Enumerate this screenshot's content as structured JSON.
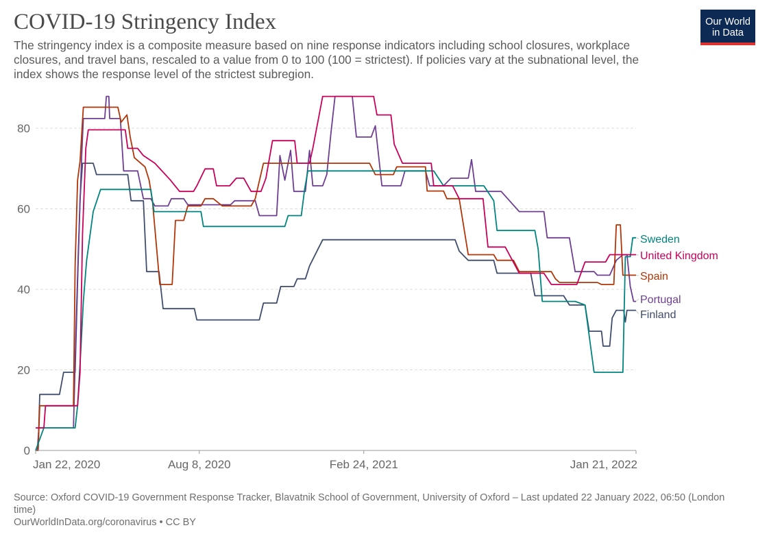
{
  "header": {
    "title": "COVID-19 Stringency Index",
    "subtitle": "The stringency index is a composite measure based on nine response indicators including school closures, workplace closures, and travel bans, rescaled to a value from 0 to 100 (100 = strictest). If policies vary at the subnational level, the index shows the response level of the strictest subregion."
  },
  "logo": {
    "line1": "Our World",
    "line2": "in Data",
    "bg_color": "#0d2a55",
    "accent_color": "#dc3232"
  },
  "footer": {
    "source": "Source: Oxford COVID-19 Government Response Tracker, Blavatnik School of Government, University of Oxford – Last updated 22 January 2022, 06:50 (London time)",
    "credit": "OurWorldInData.org/coronavirus • CC BY"
  },
  "chart_data": {
    "type": "line",
    "title": "COVID-19 Stringency Index",
    "xlabel": "",
    "ylabel": "",
    "x_range": [
      "2020-01-22",
      "2022-01-21"
    ],
    "ylim": [
      0,
      88
    ],
    "x_ticks": [
      {
        "date": "2020-01-22",
        "label": "Jan 22, 2020"
      },
      {
        "date": "2020-08-08",
        "label": "Aug 8, 2020"
      },
      {
        "date": "2021-02-24",
        "label": "Feb 24, 2021"
      },
      {
        "date": "2022-01-21",
        "label": "Jan 21, 2022"
      }
    ],
    "y_ticks": [
      0,
      20,
      40,
      60,
      80
    ],
    "grid": "horizontal dashed",
    "legend": "right, labels at line ends",
    "series": [
      {
        "name": "Sweden",
        "color": "#00847e",
        "last_value": 52.8,
        "points": [
          [
            "2020-01-22",
            0
          ],
          [
            "2020-02-01",
            5.6
          ],
          [
            "2020-03-10",
            5.6
          ],
          [
            "2020-03-13",
            11.1
          ],
          [
            "2020-03-17",
            25
          ],
          [
            "2020-03-20",
            37
          ],
          [
            "2020-03-24",
            47.2
          ],
          [
            "2020-04-01",
            59.3
          ],
          [
            "2020-04-10",
            64.8
          ],
          [
            "2020-06-10",
            64.8
          ],
          [
            "2020-06-14",
            59.3
          ],
          [
            "2020-08-10",
            59.3
          ],
          [
            "2020-08-13",
            55.6
          ],
          [
            "2020-11-20",
            55.6
          ],
          [
            "2020-11-24",
            58.3
          ],
          [
            "2020-12-10",
            58.3
          ],
          [
            "2020-12-14",
            64.8
          ],
          [
            "2020-12-18",
            69.4
          ],
          [
            "2021-04-20",
            69.4
          ],
          [
            "2021-05-20",
            69.4
          ],
          [
            "2021-06-01",
            65.7
          ],
          [
            "2021-07-20",
            65.7
          ],
          [
            "2021-08-01",
            62
          ],
          [
            "2021-08-05",
            54.6
          ],
          [
            "2021-09-20",
            54.6
          ],
          [
            "2021-09-24",
            50
          ],
          [
            "2021-09-29",
            37
          ],
          [
            "2021-11-08",
            37
          ],
          [
            "2021-11-20",
            36.1
          ],
          [
            "2021-12-01",
            19.4
          ],
          [
            "2022-01-05",
            19.4
          ],
          [
            "2022-01-08",
            48.1
          ],
          [
            "2022-01-14",
            48.1
          ],
          [
            "2022-01-17",
            52.8
          ],
          [
            "2022-01-21",
            52.8
          ]
        ]
      },
      {
        "name": "United Kingdom",
        "color": "#c8005a",
        "last_value": 48.6,
        "points": [
          [
            "2020-01-22",
            5.6
          ],
          [
            "2020-02-01",
            5.6
          ],
          [
            "2020-02-03",
            11.1
          ],
          [
            "2020-03-13",
            11.1
          ],
          [
            "2020-03-16",
            19.4
          ],
          [
            "2020-03-19",
            53.7
          ],
          [
            "2020-03-23",
            75
          ],
          [
            "2020-03-26",
            79.6
          ],
          [
            "2020-05-10",
            79.6
          ],
          [
            "2020-05-13",
            75
          ],
          [
            "2020-05-25",
            75
          ],
          [
            "2020-06-01",
            73.2
          ],
          [
            "2020-06-15",
            71.3
          ],
          [
            "2020-07-04",
            67.1
          ],
          [
            "2020-07-15",
            64.3
          ],
          [
            "2020-08-01",
            64.3
          ],
          [
            "2020-08-05",
            65.7
          ],
          [
            "2020-08-15",
            69.9
          ],
          [
            "2020-08-25",
            69.9
          ],
          [
            "2020-08-29",
            65.7
          ],
          [
            "2020-09-14",
            65.7
          ],
          [
            "2020-09-22",
            67.6
          ],
          [
            "2020-10-01",
            67.6
          ],
          [
            "2020-10-10",
            64.3
          ],
          [
            "2020-10-22",
            64.3
          ],
          [
            "2020-10-28",
            67.6
          ],
          [
            "2020-11-05",
            76.9
          ],
          [
            "2020-12-02",
            76.9
          ],
          [
            "2020-12-05",
            71.3
          ],
          [
            "2020-12-20",
            71.3
          ],
          [
            "2020-12-24",
            75
          ],
          [
            "2021-01-05",
            87.9
          ],
          [
            "2021-03-08",
            87.9
          ],
          [
            "2021-03-12",
            83.3
          ],
          [
            "2021-03-29",
            83.3
          ],
          [
            "2021-04-02",
            76
          ],
          [
            "2021-04-12",
            71.3
          ],
          [
            "2021-05-17",
            71.3
          ],
          [
            "2021-05-20",
            65.7
          ],
          [
            "2021-06-12",
            65.7
          ],
          [
            "2021-06-20",
            62.5
          ],
          [
            "2021-07-19",
            62.5
          ],
          [
            "2021-07-25",
            50.5
          ],
          [
            "2021-08-15",
            50.5
          ],
          [
            "2021-09-01",
            44
          ],
          [
            "2021-10-01",
            44
          ],
          [
            "2021-10-10",
            41.2
          ],
          [
            "2021-11-10",
            41.2
          ],
          [
            "2021-11-20",
            46.8
          ],
          [
            "2021-12-15",
            46.8
          ],
          [
            "2021-12-20",
            48.6
          ],
          [
            "2022-01-21",
            48.6
          ]
        ]
      },
      {
        "name": "Spain",
        "color": "#b13507",
        "last_value": 43.5,
        "points": [
          [
            "2020-01-22",
            0
          ],
          [
            "2020-01-25",
            0
          ],
          [
            "2020-01-27",
            11.1
          ],
          [
            "2020-03-08",
            11.1
          ],
          [
            "2020-03-10",
            45.8
          ],
          [
            "2020-03-13",
            67.1
          ],
          [
            "2020-03-16",
            71.8
          ],
          [
            "2020-03-20",
            85.2
          ],
          [
            "2020-05-01",
            85.2
          ],
          [
            "2020-05-05",
            81.5
          ],
          [
            "2020-05-12",
            83.3
          ],
          [
            "2020-05-16",
            77.8
          ],
          [
            "2020-05-21",
            72.7
          ],
          [
            "2020-06-03",
            70.4
          ],
          [
            "2020-06-08",
            67.1
          ],
          [
            "2020-06-12",
            62
          ],
          [
            "2020-06-21",
            41.2
          ],
          [
            "2020-07-06",
            41.2
          ],
          [
            "2020-07-10",
            57.1
          ],
          [
            "2020-07-20",
            57.1
          ],
          [
            "2020-07-25",
            60.7
          ],
          [
            "2020-08-10",
            60.7
          ],
          [
            "2020-08-15",
            62.5
          ],
          [
            "2020-08-25",
            62.5
          ],
          [
            "2020-09-05",
            60.7
          ],
          [
            "2020-10-10",
            60.7
          ],
          [
            "2020-10-15",
            62.5
          ],
          [
            "2020-10-25",
            71.3
          ],
          [
            "2021-03-03",
            71.3
          ],
          [
            "2021-03-10",
            68.5
          ],
          [
            "2021-04-01",
            68.5
          ],
          [
            "2021-04-05",
            70.4
          ],
          [
            "2021-05-10",
            70.4
          ],
          [
            "2021-05-12",
            64.4
          ],
          [
            "2021-06-01",
            64.4
          ],
          [
            "2021-06-05",
            62.5
          ],
          [
            "2021-06-20",
            62.5
          ],
          [
            "2021-07-01",
            48.6
          ],
          [
            "2021-08-01",
            48.6
          ],
          [
            "2021-08-05",
            47.2
          ],
          [
            "2021-08-25",
            47.2
          ],
          [
            "2021-09-01",
            44.4
          ],
          [
            "2021-10-10",
            44.4
          ],
          [
            "2021-10-15",
            42.6
          ],
          [
            "2021-10-20",
            41.7
          ],
          [
            "2021-11-25",
            41.7
          ],
          [
            "2021-12-05",
            41.7
          ],
          [
            "2021-12-10",
            41.2
          ],
          [
            "2021-12-25",
            41.2
          ],
          [
            "2021-12-28",
            56
          ],
          [
            "2022-01-02",
            56
          ],
          [
            "2022-01-05",
            43.5
          ],
          [
            "2022-01-21",
            43.5
          ]
        ]
      },
      {
        "name": "Portugal",
        "color": "#6d3e91",
        "last_value": 37,
        "points": [
          [
            "2020-01-22",
            0
          ],
          [
            "2020-01-24",
            0
          ],
          [
            "2020-01-26",
            5.6
          ],
          [
            "2020-03-08",
            5.6
          ],
          [
            "2020-03-11",
            30
          ],
          [
            "2020-03-14",
            50
          ],
          [
            "2020-03-18",
            73.2
          ],
          [
            "2020-03-20",
            82.4
          ],
          [
            "2020-04-15",
            82.4
          ],
          [
            "2020-04-17",
            87.9
          ],
          [
            "2020-04-20",
            87.9
          ],
          [
            "2020-04-21",
            82.4
          ],
          [
            "2020-05-04",
            82.4
          ],
          [
            "2020-05-08",
            69.4
          ],
          [
            "2020-05-25",
            69.4
          ],
          [
            "2020-06-01",
            62.5
          ],
          [
            "2020-06-10",
            62.5
          ],
          [
            "2020-06-15",
            60.7
          ],
          [
            "2020-07-01",
            60.7
          ],
          [
            "2020-07-05",
            62.5
          ],
          [
            "2020-07-20",
            62.5
          ],
          [
            "2020-07-25",
            61
          ],
          [
            "2020-09-15",
            61
          ],
          [
            "2020-09-20",
            62
          ],
          [
            "2020-10-15",
            62
          ],
          [
            "2020-10-20",
            58.3
          ],
          [
            "2020-11-10",
            58.3
          ],
          [
            "2020-11-14",
            73.2
          ],
          [
            "2020-11-20",
            67.1
          ],
          [
            "2020-11-27",
            74.5
          ],
          [
            "2020-12-01",
            64.3
          ],
          [
            "2020-12-15",
            64.3
          ],
          [
            "2020-12-20",
            74.5
          ],
          [
            "2020-12-24",
            65.7
          ],
          [
            "2021-01-05",
            65.7
          ],
          [
            "2021-01-10",
            68.5
          ],
          [
            "2021-01-15",
            78.7
          ],
          [
            "2021-01-20",
            87.9
          ],
          [
            "2021-02-10",
            87.9
          ],
          [
            "2021-02-15",
            77.8
          ],
          [
            "2021-03-05",
            77.8
          ],
          [
            "2021-03-10",
            80.6
          ],
          [
            "2021-03-18",
            65.7
          ],
          [
            "2021-04-10",
            65.7
          ],
          [
            "2021-04-15",
            69.4
          ],
          [
            "2021-05-10",
            69.4
          ],
          [
            "2021-05-15",
            65.7
          ],
          [
            "2021-06-01",
            65.7
          ],
          [
            "2021-06-10",
            67.6
          ],
          [
            "2021-07-01",
            67.6
          ],
          [
            "2021-07-05",
            72.2
          ],
          [
            "2021-07-10",
            64.3
          ],
          [
            "2021-07-20",
            64.3
          ],
          [
            "2021-08-01",
            64.3
          ],
          [
            "2021-08-10",
            64.3
          ],
          [
            "2021-09-01",
            59.3
          ],
          [
            "2021-10-01",
            59.3
          ],
          [
            "2021-10-05",
            52.8
          ],
          [
            "2021-11-01",
            52.8
          ],
          [
            "2021-11-08",
            44.4
          ],
          [
            "2021-12-01",
            44.4
          ],
          [
            "2021-12-05",
            43.5
          ],
          [
            "2021-12-20",
            43.5
          ],
          [
            "2021-12-28",
            47.2
          ],
          [
            "2022-01-05",
            48.6
          ],
          [
            "2022-01-10",
            48.6
          ],
          [
            "2022-01-14",
            40.7
          ],
          [
            "2022-01-18",
            37
          ],
          [
            "2022-01-21",
            37
          ]
        ]
      },
      {
        "name": "Finland",
        "color": "#3f4c6b",
        "last_value": 34.8,
        "points": [
          [
            "2020-01-22",
            0
          ],
          [
            "2020-01-25",
            0
          ],
          [
            "2020-01-27",
            13.9
          ],
          [
            "2020-02-20",
            13.9
          ],
          [
            "2020-02-25",
            19.4
          ],
          [
            "2020-03-10",
            19.4
          ],
          [
            "2020-03-13",
            41.7
          ],
          [
            "2020-03-16",
            62.5
          ],
          [
            "2020-03-19",
            71.3
          ],
          [
            "2020-04-01",
            71.3
          ],
          [
            "2020-04-05",
            68.5
          ],
          [
            "2020-05-13",
            68.5
          ],
          [
            "2020-05-17",
            62
          ],
          [
            "2020-06-01",
            62
          ],
          [
            "2020-06-05",
            44.4
          ],
          [
            "2020-06-20",
            44.4
          ],
          [
            "2020-06-25",
            35.2
          ],
          [
            "2020-07-20",
            35.2
          ],
          [
            "2020-07-25",
            35.2
          ],
          [
            "2020-08-02",
            35.2
          ],
          [
            "2020-08-05",
            32.4
          ],
          [
            "2020-09-15",
            32.4
          ],
          [
            "2020-09-20",
            32.4
          ],
          [
            "2020-10-20",
            32.4
          ],
          [
            "2020-10-25",
            36.6
          ],
          [
            "2020-11-10",
            36.6
          ],
          [
            "2020-11-15",
            40.7
          ],
          [
            "2020-12-01",
            40.7
          ],
          [
            "2020-12-05",
            42.6
          ],
          [
            "2020-12-15",
            42.6
          ],
          [
            "2020-12-20",
            45.8
          ],
          [
            "2021-01-05",
            52.3
          ],
          [
            "2021-06-15",
            52.3
          ],
          [
            "2021-06-20",
            49.5
          ],
          [
            "2021-07-01",
            47.2
          ],
          [
            "2021-08-01",
            47.2
          ],
          [
            "2021-08-05",
            44
          ],
          [
            "2021-09-15",
            44
          ],
          [
            "2021-09-20",
            38.4
          ],
          [
            "2021-10-25",
            38.4
          ],
          [
            "2021-11-01",
            36.1
          ],
          [
            "2021-11-20",
            36.1
          ],
          [
            "2021-11-25",
            29.6
          ],
          [
            "2021-12-10",
            29.6
          ],
          [
            "2021-12-12",
            25.9
          ],
          [
            "2021-12-20",
            25.9
          ],
          [
            "2021-12-23",
            32.9
          ],
          [
            "2021-12-28",
            34.8
          ],
          [
            "2022-01-06",
            34.8
          ],
          [
            "2022-01-08",
            31.9
          ],
          [
            "2022-01-10",
            34.8
          ],
          [
            "2022-01-21",
            34.8
          ]
        ]
      }
    ]
  }
}
